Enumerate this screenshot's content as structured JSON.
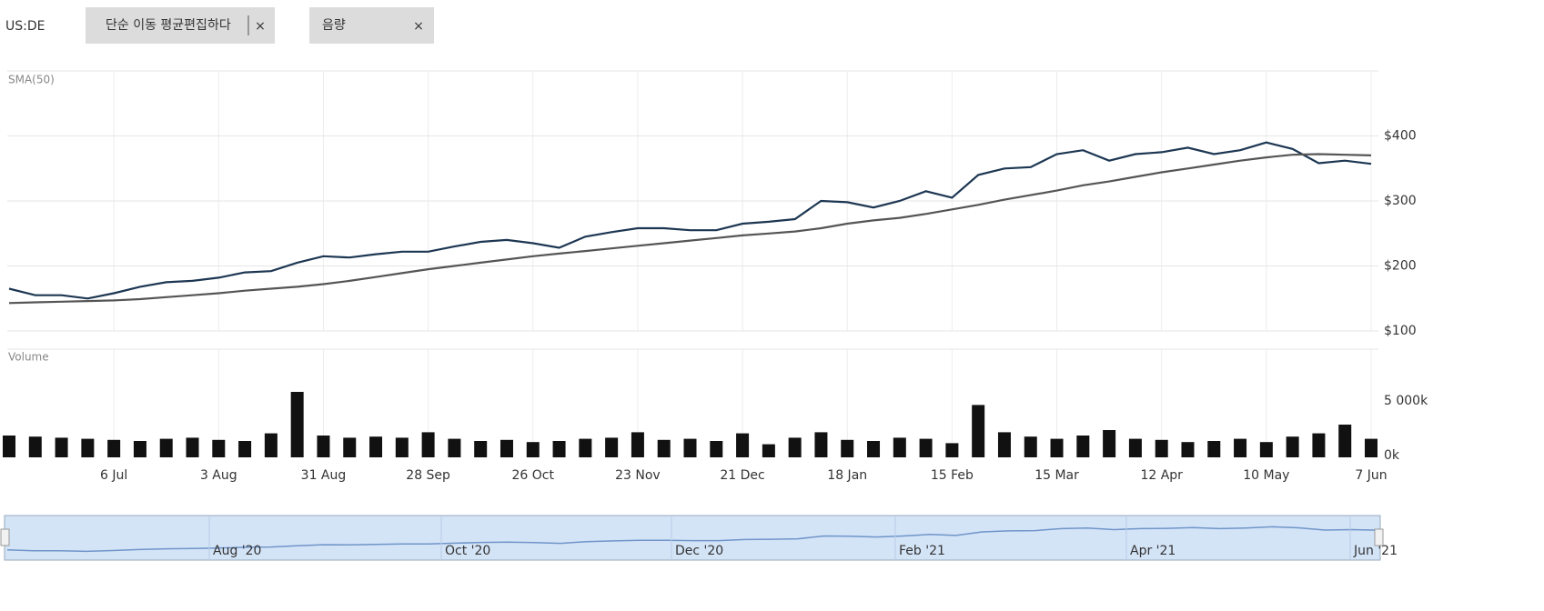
{
  "header": {
    "symbol": "US:DE",
    "chips": [
      {
        "label": "단순 이동 평균편집하다",
        "close": "×"
      },
      {
        "label": "음량",
        "close": "×"
      }
    ]
  },
  "chart_data": [
    {
      "type": "line",
      "series": [
        {
          "color": "#1d3753",
          "values": [
            165,
            155,
            155,
            150,
            158,
            168,
            175,
            177,
            182,
            190,
            192,
            205,
            215,
            213,
            218,
            222,
            222,
            230,
            237,
            240,
            235,
            228,
            245,
            252,
            258,
            258,
            255,
            255,
            265,
            268,
            272,
            300,
            298,
            290,
            300,
            315,
            305,
            340,
            350,
            352,
            372,
            378,
            362,
            372,
            375,
            382,
            372,
            378,
            390,
            380,
            358,
            362,
            357
          ]
        },
        {
          "name": "SMA(50)",
          "color": "#555555",
          "values": [
            143,
            144,
            145,
            146,
            147,
            149,
            152,
            155,
            158,
            162,
            165,
            168,
            172,
            177,
            183,
            189,
            195,
            200,
            205,
            210,
            215,
            219,
            223,
            227,
            231,
            235,
            239,
            243,
            247,
            250,
            253,
            258,
            265,
            270,
            274,
            280,
            287,
            294,
            302,
            309,
            316,
            324,
            330,
            337,
            344,
            350,
            356,
            362,
            367,
            371,
            372,
            371,
            370
          ]
        }
      ],
      "ylim": [
        100,
        500
      ],
      "yticks": [
        {
          "value": 100,
          "label": "$100"
        },
        {
          "value": 200,
          "label": "$200"
        },
        {
          "value": 300,
          "label": "$300"
        },
        {
          "value": 400,
          "label": "$400"
        }
      ],
      "grid": true
    },
    {
      "type": "bar",
      "title": "Volume",
      "color": "#111111",
      "categories": [
        null,
        null,
        null,
        null,
        "6 Jul",
        null,
        null,
        null,
        "3 Aug",
        null,
        null,
        null,
        "31 Aug",
        null,
        null,
        null,
        "28 Sep",
        null,
        null,
        null,
        "26 Oct",
        null,
        null,
        null,
        "23 Nov",
        null,
        null,
        null,
        "21 Dec",
        null,
        null,
        null,
        "18 Jan",
        null,
        null,
        null,
        "15 Feb",
        null,
        null,
        null,
        "15 Mar",
        null,
        null,
        null,
        "12 Apr",
        null,
        null,
        null,
        "10 May",
        null,
        null,
        null,
        "7 Jun"
      ],
      "values": [
        2000,
        1900,
        1800,
        1700,
        1600,
        1500,
        1700,
        1800,
        1600,
        1500,
        2200,
        6000,
        2000,
        1800,
        1900,
        1800,
        2300,
        1700,
        1500,
        1600,
        1400,
        1500,
        1700,
        1800,
        2300,
        1600,
        1700,
        1500,
        2200,
        1200,
        1800,
        2300,
        1600,
        1500,
        1800,
        1700,
        1300,
        4800,
        2300,
        1900,
        1700,
        2000,
        2500,
        1700,
        1600,
        1400,
        1500,
        1700,
        1400,
        1900,
        2200,
        3000,
        1700
      ],
      "ylim": [
        0,
        10000
      ],
      "yticks": [
        {
          "value": 0,
          "label": "0k"
        },
        {
          "value": 5000,
          "label": "5 000k"
        }
      ]
    }
  ],
  "navigator": {
    "labels": [
      "Aug '20",
      "Oct '20",
      "Dec '20",
      "Feb '21",
      "Apr '21",
      "Jun '21"
    ]
  }
}
